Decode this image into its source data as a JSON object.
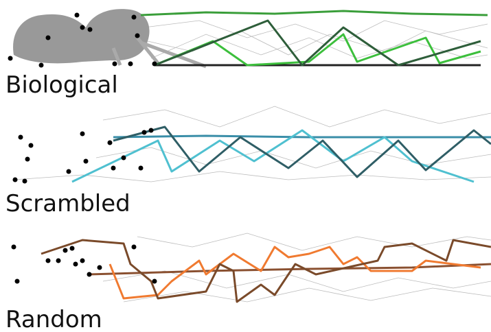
{
  "panels": [
    {
      "label": "Biological"
    },
    {
      "label": "Scrambled"
    },
    {
      "label": "Random"
    }
  ]
}
